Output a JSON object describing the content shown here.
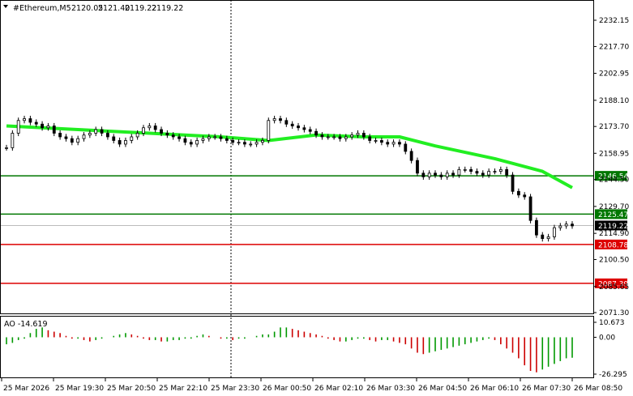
{
  "header": {
    "symbol": "#Ethereum,M5",
    "open": "2120.05",
    "high": "2121.40",
    "low": "2119.22",
    "close": "2119.22"
  },
  "indicator": {
    "label": "AO -14.619"
  },
  "colors": {
    "candle": "#000000",
    "ma_line": "#22ee22",
    "support_green": "#007700",
    "resistance_red": "#dd0000",
    "ao_up": "#009900",
    "ao_down": "#cc0000",
    "bid_line": "#bbbbbb"
  },
  "chart_data": {
    "type": "candlestick",
    "title": "#Ethereum,M5",
    "price_ylim": [
      2064,
      2242
    ],
    "price_ticks": [
      "2232.15",
      "2217.70",
      "2202.95",
      "2188.10",
      "2173.70",
      "2158.95",
      "2144.50",
      "2129.70",
      "2114.90",
      "2100.50",
      "2085.65",
      "2071.30"
    ],
    "x_ticks": [
      "25 Mar 2026",
      "25 Mar 19:30",
      "25 Mar 20:50",
      "25 Mar 22:10",
      "25 Mar 23:30",
      "26 Mar 00:50",
      "26 Mar 02:10",
      "26 Mar 03:30",
      "26 Mar 04:50",
      "26 Mar 06:10",
      "26 Mar 07:30",
      "26 Mar 08:50"
    ],
    "close_series": [
      2162,
      2170,
      2177,
      2178,
      2176,
      2175,
      2173,
      2174,
      2170,
      2168,
      2167,
      2165,
      2167,
      2169,
      2170,
      2172,
      2170,
      2168,
      2166,
      2164,
      2166,
      2168,
      2170,
      2173,
      2174,
      2172,
      2170,
      2169,
      2168,
      2167,
      2165,
      2164,
      2166,
      2167,
      2168,
      2168,
      2167,
      2166,
      2165,
      2165,
      2164,
      2164,
      2165,
      2166,
      2177,
      2178,
      2177,
      2175,
      2174,
      2173,
      2172,
      2171,
      2169,
      2168,
      2168,
      2168,
      2167,
      2168,
      2169,
      2170,
      2168,
      2166,
      2166,
      2165,
      2164,
      2165,
      2164,
      2160,
      2155,
      2148,
      2146,
      2148,
      2147,
      2146,
      2148,
      2147,
      2150,
      2150,
      2149,
      2148,
      2147,
      2149,
      2149,
      2150,
      2147,
      2138,
      2136,
      2135,
      2122,
      2114,
      2112,
      2113,
      2118,
      2119,
      2120,
      2119
    ],
    "moving_average": [
      {
        "x": 0,
        "y": 2174
      },
      {
        "x": 12,
        "y": 2172
      },
      {
        "x": 24,
        "y": 2170
      },
      {
        "x": 36,
        "y": 2168
      },
      {
        "x": 44,
        "y": 2166
      },
      {
        "x": 52,
        "y": 2169
      },
      {
        "x": 60,
        "y": 2168
      },
      {
        "x": 66,
        "y": 2168
      },
      {
        "x": 72,
        "y": 2163
      },
      {
        "x": 82,
        "y": 2156
      },
      {
        "x": 90,
        "y": 2149
      },
      {
        "x": 95,
        "y": 2140
      }
    ],
    "levels": [
      {
        "price": 2146.54,
        "label": "2146.54",
        "kind": "support",
        "color": "#007700"
      },
      {
        "price": 2125.47,
        "label": "2125.47",
        "kind": "support",
        "color": "#007700"
      },
      {
        "price": 2108.78,
        "label": "2108.78",
        "kind": "resistance",
        "color": "#dd0000"
      },
      {
        "price": 2087.39,
        "label": "2087.39",
        "kind": "resistance",
        "color": "#dd0000"
      }
    ],
    "current_price": {
      "price": 2119.22,
      "label": "2119.22"
    },
    "ao": {
      "name": "AO",
      "last": -14.619,
      "ylim": [
        -26.295,
        10.673
      ],
      "ticks": [
        "10.673",
        "0.00",
        "-26.295"
      ],
      "values": [
        -5,
        -4,
        -2,
        -1,
        3,
        6,
        7,
        5,
        4,
        3,
        1,
        -1,
        -1,
        -2,
        -3,
        -2,
        -1,
        0,
        1,
        2,
        3,
        2,
        1,
        -1,
        -2,
        -2,
        -3,
        -3,
        -2,
        -2,
        -1,
        -1,
        1,
        2,
        1,
        0,
        -1,
        -1,
        -2,
        -1,
        -1,
        0,
        1,
        2,
        2,
        4,
        7,
        7,
        6,
        5,
        4,
        3,
        2,
        1,
        -1,
        -2,
        -3,
        -3,
        -2,
        -1,
        -1,
        -2,
        -3,
        -2,
        -2,
        -3,
        -4,
        -5,
        -8,
        -11,
        -12,
        -11,
        -10,
        -9,
        -8,
        -7,
        -6,
        -5,
        -4,
        -3,
        -2,
        -1,
        -2,
        -5,
        -8,
        -11,
        -15,
        -20,
        -24,
        -25,
        -23,
        -21,
        -19,
        -17,
        -15,
        -14.6
      ]
    }
  }
}
